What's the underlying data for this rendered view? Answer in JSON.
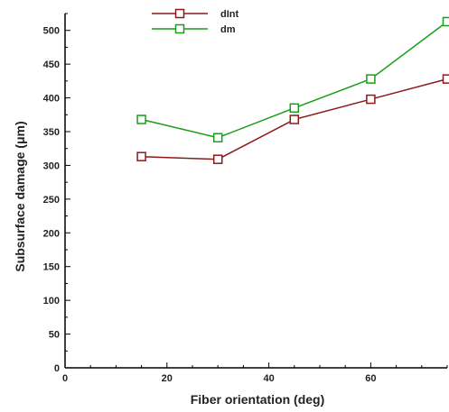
{
  "chart_data": {
    "type": "line",
    "xlabel": "Fiber orientation (deg)",
    "ylabel": "Subsurface damage (μm)",
    "xlim": [
      0,
      75
    ],
    "ylim": [
      0,
      525
    ],
    "xticks": [
      0,
      20,
      40,
      60
    ],
    "yticks": [
      0,
      50,
      100,
      150,
      200,
      250,
      300,
      350,
      400,
      450,
      500
    ],
    "legend_position": "top-left",
    "grid": false,
    "series": [
      {
        "name": "dInt",
        "color": "#8b1a1a",
        "marker": "square-open",
        "x": [
          15,
          30,
          45,
          60,
          75
        ],
        "y": [
          313,
          309,
          368,
          398,
          428
        ]
      },
      {
        "name": "dm",
        "color": "#1a9e1a",
        "marker": "square-open",
        "x": [
          15,
          30,
          45,
          60,
          75
        ],
        "y": [
          368,
          341,
          385,
          428,
          513
        ]
      }
    ]
  }
}
